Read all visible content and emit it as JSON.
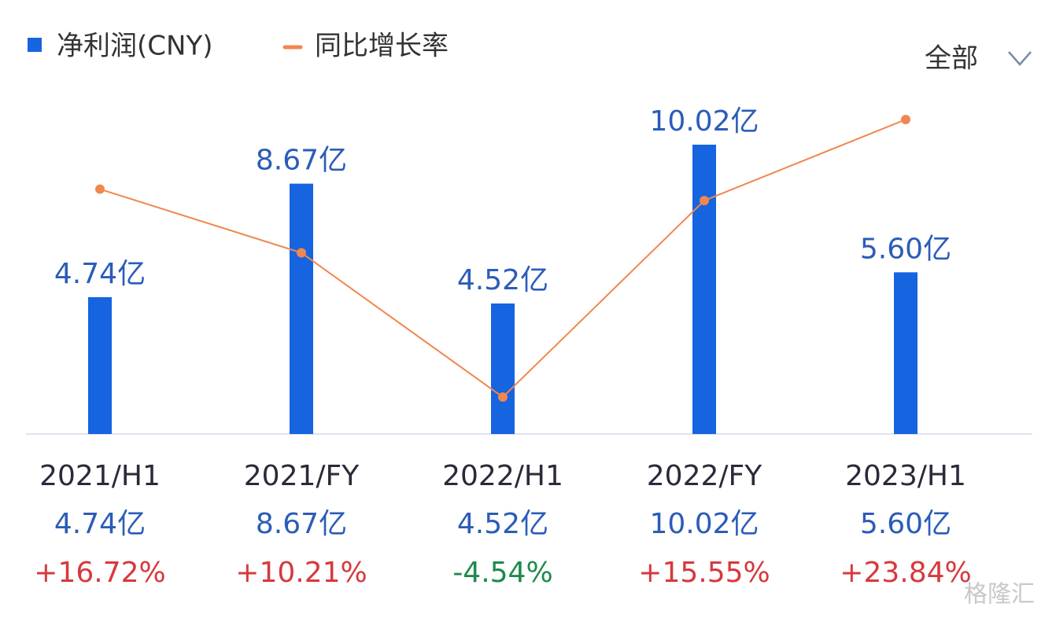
{
  "chart_data": {
    "type": "bar",
    "categories": [
      "2021/H1",
      "2021/FY",
      "2022/H1",
      "2022/FY",
      "2023/H1"
    ],
    "series": [
      {
        "name": "净利润(CNY)",
        "color": "#1664e0",
        "values": [
          4.74,
          8.67,
          4.52,
          10.02,
          5.6
        ],
        "value_labels": [
          "4.74亿",
          "8.67亿",
          "4.52亿",
          "10.02亿",
          "5.60亿"
        ]
      },
      {
        "name": "同比增长率",
        "type": "line",
        "axis": "y2",
        "color": "#f0874f",
        "values": [
          16.72,
          10.21,
          -4.54,
          15.55,
          23.84
        ],
        "value_labels": [
          "+16.72%",
          "+10.21%",
          "-4.54%",
          "+15.55%",
          "+23.84%"
        ]
      }
    ],
    "legend": "top-left",
    "dropdown": "全部",
    "watermark": "格隆汇"
  }
}
